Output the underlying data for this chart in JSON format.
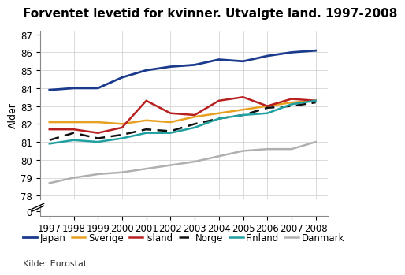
{
  "title": "Forventet levetid for kvinner. Utvalgte land. 1997-2008",
  "ylabel": "Alder",
  "source": "Kilde: Eurostat.",
  "years": [
    1997,
    1998,
    1999,
    2000,
    2001,
    2002,
    2003,
    2004,
    2005,
    2006,
    2007,
    2008
  ],
  "series": {
    "Japan": {
      "values": [
        83.9,
        84.0,
        84.0,
        84.6,
        85.0,
        85.2,
        85.3,
        85.6,
        85.5,
        85.8,
        86.0,
        86.1
      ],
      "color": "#1a3a8c",
      "linestyle": "-",
      "linewidth": 2.0,
      "dashes": null
    },
    "Sverige": {
      "values": [
        82.1,
        82.1,
        82.1,
        82.0,
        82.2,
        82.1,
        82.4,
        82.6,
        82.8,
        83.0,
        83.2,
        83.3
      ],
      "color": "#e8a020",
      "linestyle": "-",
      "linewidth": 1.8,
      "dashes": null
    },
    "Island": {
      "values": [
        81.7,
        81.7,
        81.5,
        81.8,
        83.3,
        82.6,
        82.5,
        83.3,
        83.5,
        83.0,
        83.4,
        83.3
      ],
      "color": "#b82020",
      "linestyle": "-",
      "linewidth": 1.8,
      "dashes": null
    },
    "Norge": {
      "values": [
        81.1,
        81.5,
        81.2,
        81.4,
        81.7,
        81.6,
        82.0,
        82.3,
        82.5,
        82.9,
        83.0,
        83.2
      ],
      "color": "#111111",
      "linestyle": "--",
      "linewidth": 1.8,
      "dashes": [
        5,
        3
      ]
    },
    "Finland": {
      "values": [
        80.9,
        81.1,
        81.0,
        81.2,
        81.5,
        81.5,
        81.8,
        82.3,
        82.5,
        82.6,
        83.1,
        83.3
      ],
      "color": "#20a0a0",
      "linestyle": "-",
      "linewidth": 1.8,
      "dashes": null
    },
    "Danmark": {
      "values": [
        78.7,
        79.0,
        79.2,
        79.3,
        79.5,
        79.7,
        79.9,
        80.2,
        80.5,
        80.6,
        80.6,
        81.0
      ],
      "color": "#b0b0b0",
      "linestyle": "-",
      "linewidth": 1.8,
      "dashes": null
    }
  },
  "ylim_main": [
    77.8,
    87.2
  ],
  "yticks_main": [
    78,
    79,
    80,
    81,
    82,
    83,
    84,
    85,
    86,
    87
  ],
  "ylim_zero": [
    -0.5,
    0.5
  ],
  "background_color": "#ffffff",
  "grid_color": "#cccccc",
  "title_fontsize": 11,
  "axis_label_fontsize": 9,
  "tick_fontsize": 8.5,
  "legend_fontsize": 8.5
}
